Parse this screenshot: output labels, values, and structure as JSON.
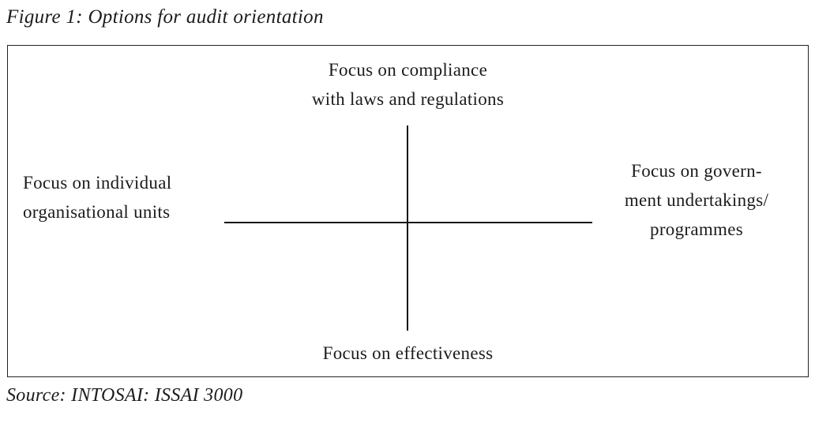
{
  "figure": {
    "title": "Figure 1: Options for audit orientation",
    "source": "Source: INTOSAI: ISSAI 3000"
  },
  "diagram": {
    "type": "quadrant-axes",
    "top_label": {
      "lines": [
        "Focus on compliance",
        "with laws and regulations"
      ]
    },
    "left_label": {
      "lines": [
        "Focus on individual",
        "organisational units"
      ]
    },
    "right_label": {
      "lines": [
        "Focus on govern-",
        "ment undertakings/",
        "programmes"
      ]
    },
    "bottom_label": "Focus on effectiveness"
  },
  "colors": {
    "text": "#1c1c1e",
    "axis_line": "#161616",
    "box_border": "#222222",
    "background": "#ffffff"
  }
}
